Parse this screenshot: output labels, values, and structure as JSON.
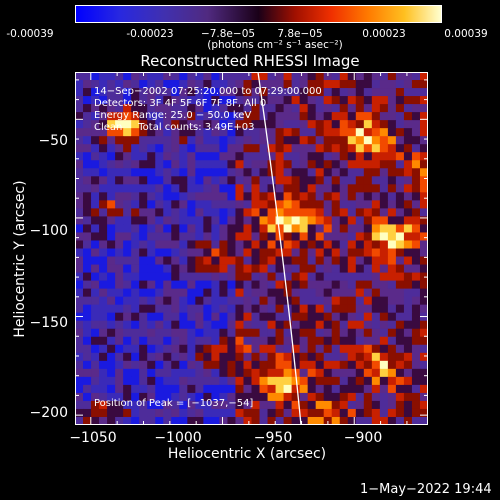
{
  "colorbar": {
    "ticks": [
      "-0.00039",
      "-0.00023",
      "−7.8e−05",
      "7.8e−05",
      "0.00023",
      "0.00039"
    ],
    "units": "(photons cm⁻² s⁻¹ asec⁻²)"
  },
  "title": "Reconstructed RHESSI Image",
  "annotation": {
    "line1": "14−Sep−2002 07:25:20.000 to 07:29:00.000",
    "line2": "Detectors: 3F 4F 5F 6F 7F 8F, All 0",
    "line3": "Energy Range: 25.0 − 50.0 keV",
    "line4": "Clean     Total counts: 3.49E+03",
    "peak": "Position of Peak = [−1037,−54]"
  },
  "axes": {
    "xlabel": "Heliocentric X (arcsec)",
    "ylabel": "Heliocentric Y (arcsec)",
    "xticks": [
      "−1050",
      "−1000",
      "−950",
      "−900"
    ],
    "yticks": [
      "−50",
      "−100",
      "−150",
      "−200"
    ],
    "xrange": [
      -1056,
      -922
    ],
    "yrange": [
      -205,
      -26
    ]
  },
  "timestamp": "1−May−2022 19:44",
  "colors": {
    "background": "#000000",
    "colormap": [
      "#0000ff",
      "#3030c0",
      "#5a20a0",
      "#000000",
      "#c01a00",
      "#ff4000",
      "#ffa000",
      "#ffff60",
      "#ffffff"
    ]
  }
}
